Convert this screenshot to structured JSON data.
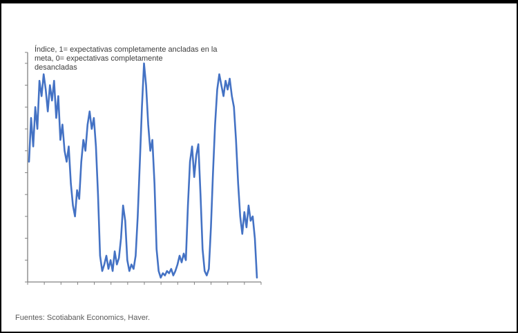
{
  "annotation": {
    "lines": [
      "Índice, 1= expectativas completamente ancladas en la",
      "meta, 0= expectativas completamente",
      "desancladas"
    ]
  },
  "footer": {
    "source": "Fuentes: Scotiabank Economics, Haver."
  },
  "colors": {
    "line": "#4472C4",
    "axis": "#808080",
    "annotation_text": "#3b3b3b",
    "source_text": "#595959",
    "frame": "#000000"
  },
  "chart_data": {
    "type": "line",
    "title": "",
    "annotation": "Índice, 1= expectativas completamente ancladas en la meta, 0= expectativas completamente desancladas",
    "xlabel": "",
    "ylabel": "",
    "ylim": [
      0,
      1.05
    ],
    "grid": false,
    "legend": "none",
    "x_tick_labels_visible": false,
    "y_tick_labels_visible": false,
    "x_tick_count": 15,
    "y_tick_step": 0.1,
    "series": [
      {
        "name": "indice-anclaje-expectativas",
        "values": [
          0.55,
          0.75,
          0.62,
          0.8,
          0.7,
          0.92,
          0.85,
          0.95,
          0.88,
          0.78,
          0.9,
          0.83,
          0.92,
          0.75,
          0.85,
          0.65,
          0.72,
          0.6,
          0.55,
          0.62,
          0.45,
          0.35,
          0.3,
          0.42,
          0.38,
          0.55,
          0.65,
          0.6,
          0.72,
          0.78,
          0.7,
          0.75,
          0.62,
          0.4,
          0.12,
          0.05,
          0.08,
          0.12,
          0.06,
          0.1,
          0.05,
          0.14,
          0.08,
          0.11,
          0.2,
          0.35,
          0.28,
          0.1,
          0.05,
          0.08,
          0.06,
          0.12,
          0.3,
          0.55,
          0.8,
          1.0,
          0.9,
          0.72,
          0.6,
          0.65,
          0.45,
          0.15,
          0.05,
          0.02,
          0.04,
          0.03,
          0.05,
          0.04,
          0.06,
          0.03,
          0.05,
          0.08,
          0.12,
          0.09,
          0.13,
          0.1,
          0.35,
          0.55,
          0.62,
          0.48,
          0.58,
          0.63,
          0.4,
          0.15,
          0.05,
          0.03,
          0.06,
          0.25,
          0.5,
          0.72,
          0.88,
          0.95,
          0.9,
          0.85,
          0.92,
          0.88,
          0.93,
          0.85,
          0.8,
          0.65,
          0.45,
          0.3,
          0.22,
          0.32,
          0.25,
          0.35,
          0.28,
          0.3,
          0.2,
          0.02
        ]
      }
    ]
  }
}
